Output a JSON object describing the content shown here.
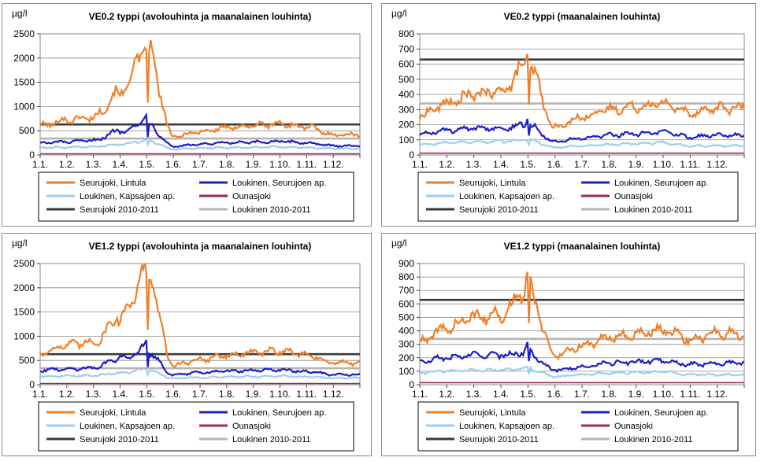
{
  "colors": {
    "seurujoki_lintula": "#f07f2a",
    "loukinen_seurujoen": "#1c1cc8",
    "loukinen_kapsajoen": "#9fcdf0",
    "ounasjoki": "#9b2a55",
    "seurujoki_ref": "#3a3a3a",
    "loukinen_ref": "#b4b4b4"
  },
  "chart_data": [
    {
      "type": "line",
      "title": "VE0.2 typpi (avolouhinta ja maanalainen louhinta)",
      "ylabel": "µg/l",
      "ylim": [
        0,
        2500
      ],
      "yticks": [
        0,
        500,
        1000,
        1500,
        2000,
        2500
      ],
      "x_tick_labels": [
        "1.1.",
        "1.2.",
        "1.3.",
        "1.4.",
        "1.5.",
        "1.6.",
        "1.7.",
        "1.8.",
        "1.9.",
        "1.10.",
        "1.11.",
        "1.12."
      ],
      "reference_lines": [
        {
          "name": "Seurujoki 2010-2011",
          "value": 630
        },
        {
          "name": "Loukinen 2010-2011",
          "value": 340
        }
      ],
      "series": [
        {
          "name": "Seurujoki, Lintula",
          "monthly_values": [
            600,
            720,
            780,
            1300,
            2200,
            380,
            480,
            560,
            610,
            640,
            580,
            420
          ],
          "spike": {
            "from": 3.6,
            "to": 4.0,
            "value": 2250
          }
        },
        {
          "name": "Loukinen, Seurujoen ap.",
          "monthly_values": [
            250,
            270,
            300,
            500,
            650,
            180,
            220,
            250,
            260,
            280,
            250,
            190
          ],
          "spike": {
            "from": 3.3,
            "to": 4.0,
            "value": 850
          }
        },
        {
          "name": "Loukinen, Kapsajoen ap.",
          "monthly_values": [
            150,
            160,
            170,
            220,
            300,
            120,
            140,
            150,
            160,
            170,
            150,
            130
          ]
        },
        {
          "name": "Ounasjoki",
          "monthly_values": [
            25,
            25,
            25,
            25,
            25,
            25,
            25,
            25,
            25,
            25,
            25,
            25
          ]
        }
      ]
    },
    {
      "type": "line",
      "title": "VE0.2 typpi (maanalainen louhinta)",
      "ylabel": "µg/l",
      "ylim": [
        0,
        800
      ],
      "yticks": [
        0,
        100,
        200,
        300,
        400,
        500,
        600,
        700,
        800
      ],
      "x_tick_labels": [
        "1.1.",
        "1.2.",
        "1.3.",
        "1.4.",
        "1.5.",
        "1.6.",
        "1.7.",
        "1.8.",
        "1.9.",
        "1.10.",
        "1.11.",
        "1.12."
      ],
      "reference_lines": [
        {
          "name": "Seurujoki 2010-2011",
          "value": 630
        },
        {
          "name": "Loukinen 2010-2011",
          "value": 340
        }
      ],
      "series": [
        {
          "name": "Seurujoki, Lintula",
          "monthly_values": [
            260,
            340,
            400,
            420,
            600,
            180,
            250,
            300,
            320,
            340,
            280,
            310
          ],
          "spike": {
            "from": 3.6,
            "to": 4.0,
            "value": 700
          }
        },
        {
          "name": "Loukinen, Seurujoen ap.",
          "monthly_values": [
            140,
            160,
            175,
            180,
            200,
            90,
            110,
            130,
            140,
            150,
            120,
            130
          ],
          "spike": {
            "from": 3.8,
            "to": 4.0,
            "value": 270
          }
        },
        {
          "name": "Loukinen, Kapsajoen ap.",
          "monthly_values": [
            70,
            80,
            85,
            90,
            100,
            50,
            60,
            70,
            75,
            80,
            60,
            60
          ]
        },
        {
          "name": "Ounasjoki",
          "monthly_values": [
            12,
            12,
            12,
            12,
            12,
            12,
            12,
            12,
            12,
            12,
            12,
            12
          ]
        }
      ]
    },
    {
      "type": "line",
      "title": "VE1.2 typpi (avolouhinta ja maanalainen louhinta)",
      "ylabel": "µg/l",
      "ylim": [
        0,
        2500
      ],
      "yticks": [
        0,
        500,
        1000,
        1500,
        2000,
        2500
      ],
      "x_tick_labels": [
        "1.1.",
        "1.2.",
        "1.3.",
        "1.4.",
        "1.5.",
        "1.6.",
        "1.7.",
        "1.8.",
        "1.9.",
        "1.10.",
        "1.11.",
        "1.12."
      ],
      "reference_lines": [
        {
          "name": "Seurujoki 2010-2011",
          "value": 630
        },
        {
          "name": "Loukinen 2010-2011",
          "value": 340
        }
      ],
      "series": [
        {
          "name": "Seurujoki, Lintula",
          "monthly_values": [
            650,
            820,
            870,
            1400,
            2300,
            400,
            520,
            600,
            660,
            700,
            620,
            450
          ],
          "spike": {
            "from": 3.6,
            "to": 4.0,
            "value": 2380
          }
        },
        {
          "name": "Loukinen, Seurujoen ap.",
          "monthly_values": [
            300,
            320,
            350,
            550,
            700,
            200,
            250,
            280,
            290,
            310,
            270,
            210
          ],
          "spike": {
            "from": 3.3,
            "to": 4.0,
            "value": 900
          }
        },
        {
          "name": "Loukinen, Kapsajoen ap.",
          "monthly_values": [
            170,
            180,
            190,
            240,
            320,
            130,
            150,
            160,
            170,
            180,
            160,
            140
          ]
        },
        {
          "name": "Ounasjoki",
          "monthly_values": [
            25,
            25,
            25,
            25,
            25,
            25,
            25,
            25,
            25,
            25,
            25,
            25
          ]
        }
      ]
    },
    {
      "type": "line",
      "title": "VE1.2 typpi (maanalainen louhinta)",
      "ylabel": "µg/l",
      "ylim": [
        0,
        900
      ],
      "yticks": [
        0,
        100,
        200,
        300,
        400,
        500,
        600,
        700,
        800,
        900
      ],
      "x_tick_labels": [
        "1.1.",
        "1.2.",
        "1.3.",
        "1.4.",
        "1.5.",
        "1.6.",
        "1.7.",
        "1.8.",
        "1.9.",
        "1.10.",
        "1.11.",
        "1.12."
      ],
      "reference_lines": [
        {
          "name": "Seurujoki 2010-2011",
          "value": 630
        },
        {
          "name": "Loukinen 2010-2011",
          "value": 340
        }
      ],
      "series": [
        {
          "name": "Seurujoki, Lintula",
          "monthly_values": [
            320,
            420,
            500,
            520,
            720,
            220,
            290,
            350,
            380,
            400,
            340,
            380
          ],
          "spike": {
            "from": 3.6,
            "to": 4.0,
            "value": 840
          }
        },
        {
          "name": "Loukinen, Seurujoen ap.",
          "monthly_values": [
            170,
            200,
            220,
            220,
            240,
            110,
            130,
            160,
            170,
            180,
            150,
            160
          ],
          "spike": {
            "from": 3.8,
            "to": 4.0,
            "value": 330
          }
        },
        {
          "name": "Loukinen, Kapsajoen ap.",
          "monthly_values": [
            90,
            100,
            105,
            110,
            120,
            60,
            75,
            85,
            90,
            95,
            75,
            75
          ]
        },
        {
          "name": "Ounasjoki",
          "monthly_values": [
            15,
            15,
            15,
            15,
            15,
            15,
            15,
            15,
            15,
            15,
            15,
            15
          ]
        }
      ]
    }
  ]
}
